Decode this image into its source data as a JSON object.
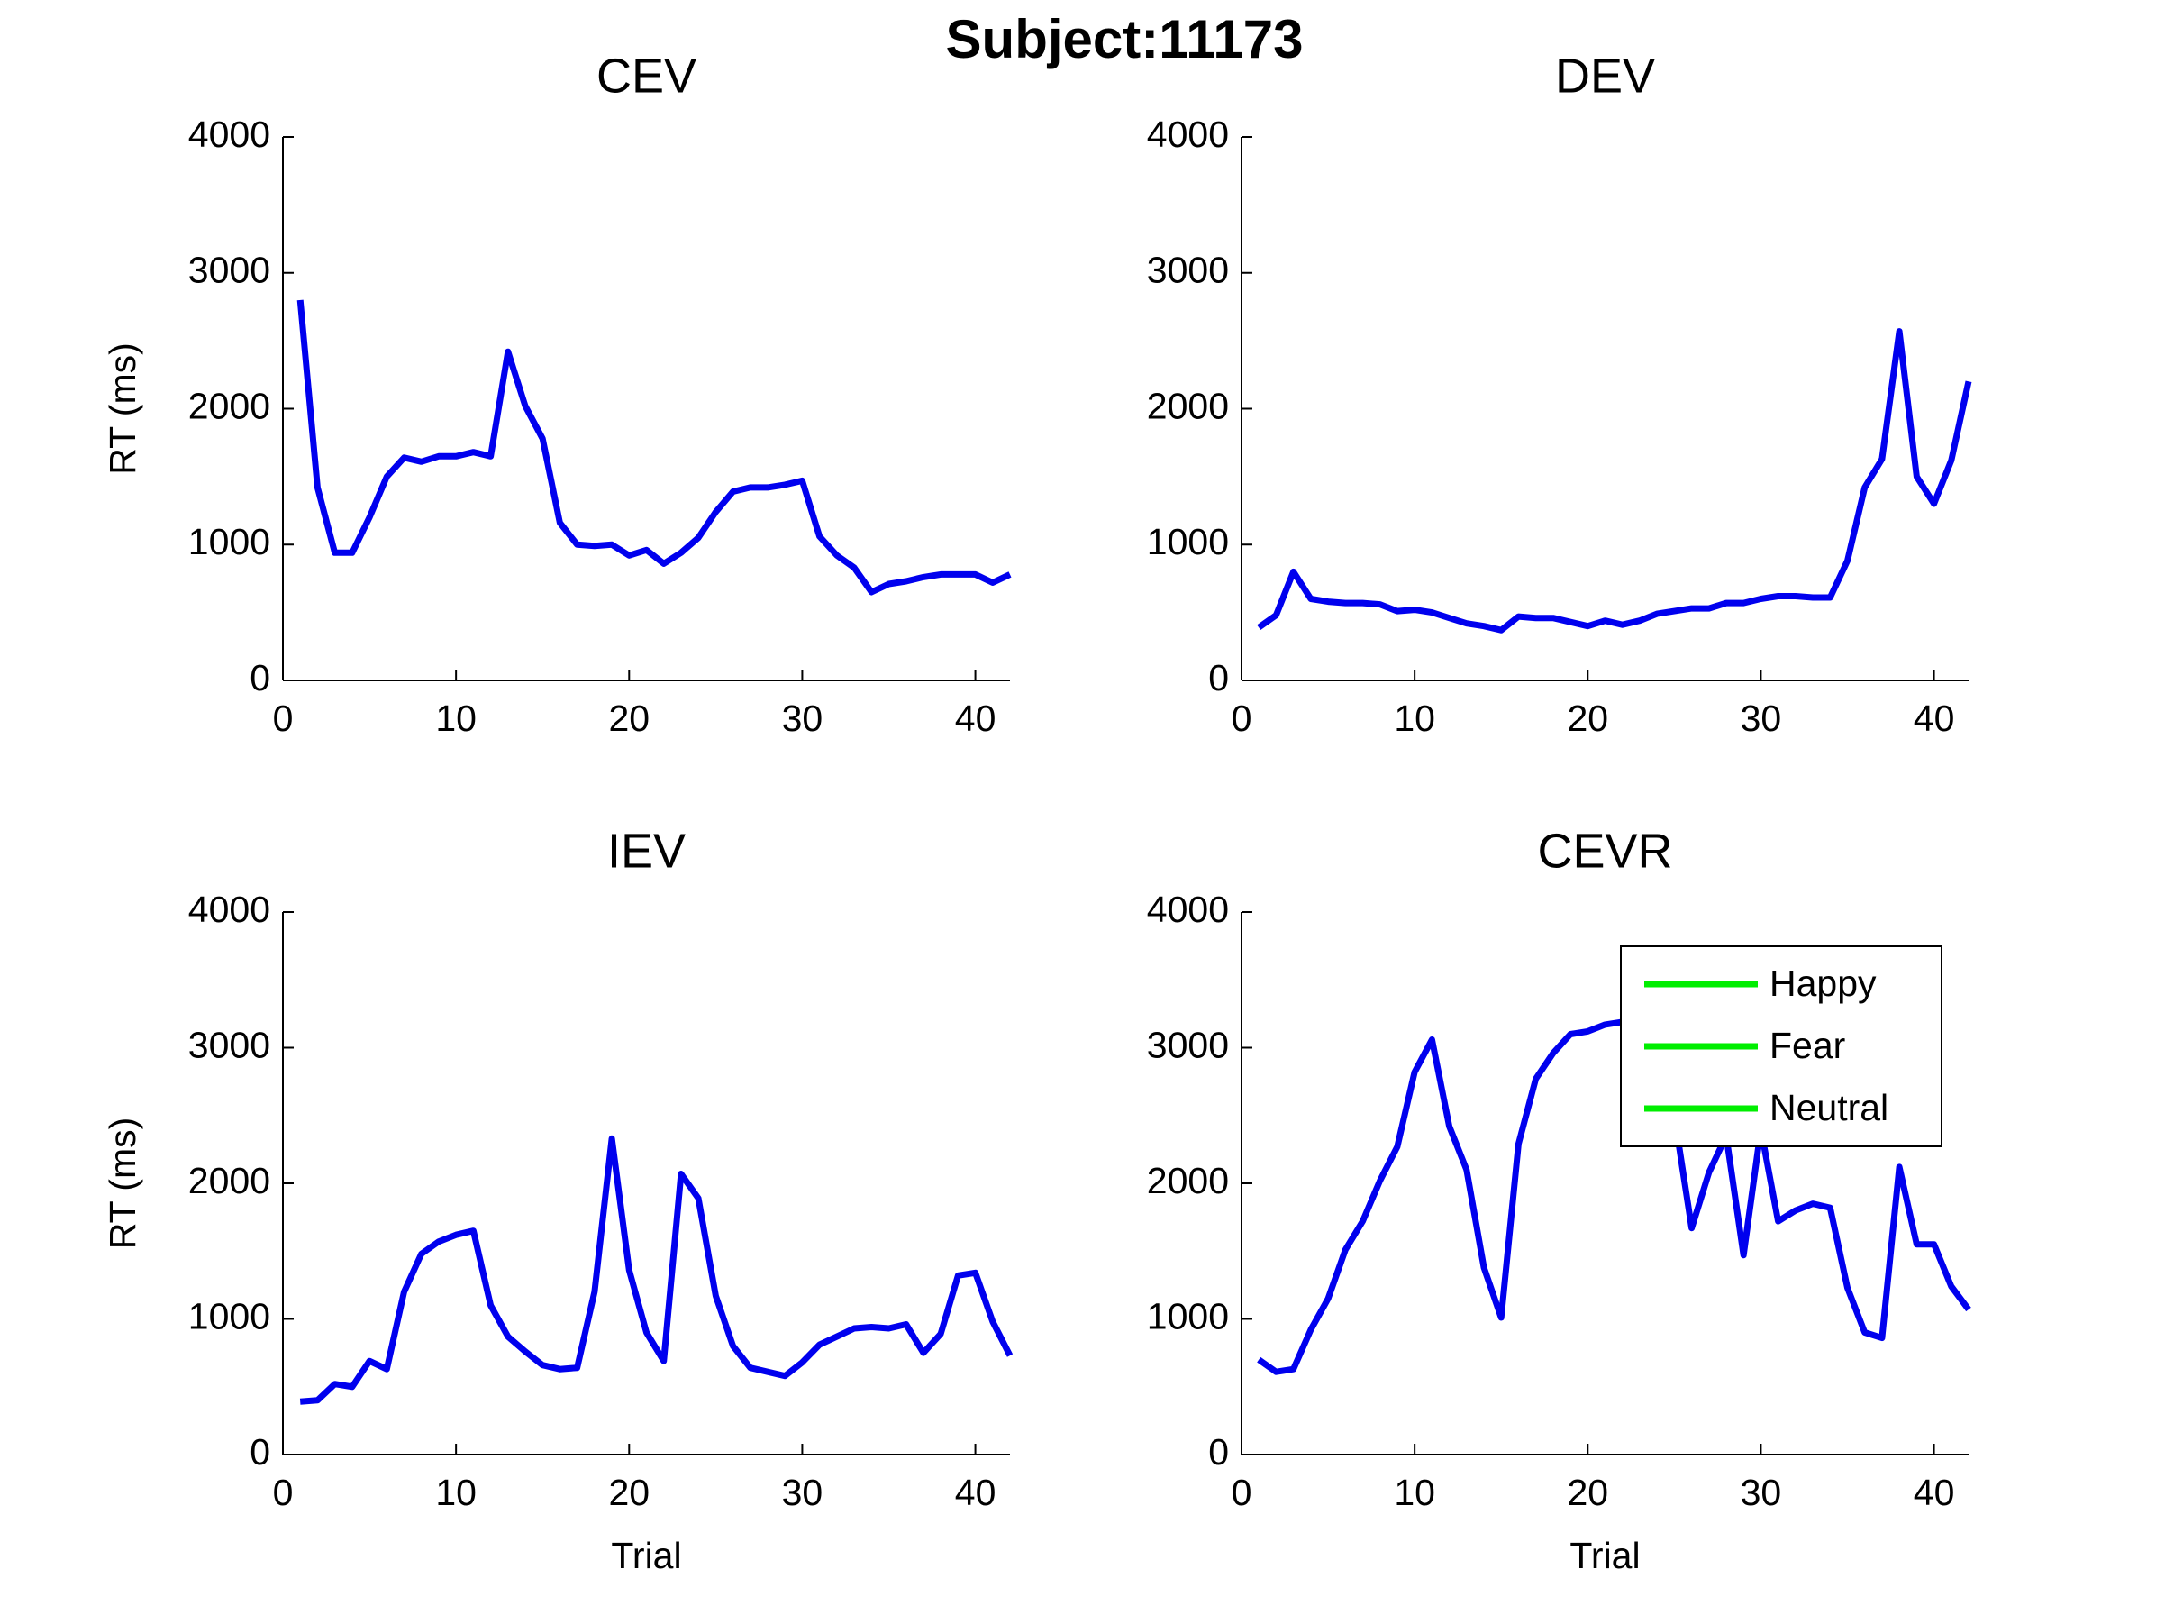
{
  "title": "Subject:11173",
  "chart_data": [
    {
      "type": "line",
      "title": "CEV",
      "ylabel": "RT (ms)",
      "x": [
        1,
        2,
        3,
        4,
        5,
        6,
        7,
        8,
        9,
        10,
        11,
        12,
        13,
        14,
        15,
        16,
        17,
        18,
        19,
        20,
        21,
        22,
        23,
        24,
        25,
        26,
        27,
        28,
        29,
        30,
        31,
        32,
        33,
        34,
        35,
        36,
        37,
        38,
        39,
        40,
        41,
        42
      ],
      "series": [
        {
          "color": "#0000ee",
          "values": [
            2800,
            1420,
            940,
            940,
            1200,
            1500,
            1640,
            1610,
            1650,
            1650,
            1680,
            1650,
            2420,
            2020,
            1780,
            1160,
            1000,
            990,
            1000,
            920,
            960,
            860,
            940,
            1050,
            1240,
            1390,
            1420,
            1420,
            1440,
            1470,
            1060,
            920,
            830,
            650,
            710,
            730,
            760,
            780,
            780,
            780,
            720,
            780
          ]
        }
      ],
      "xlim": [
        0,
        42
      ],
      "xticks": [
        0,
        10,
        20,
        30,
        40
      ],
      "ylim": [
        0,
        4000
      ],
      "yticks": [
        0,
        1000,
        2000,
        3000,
        4000
      ]
    },
    {
      "type": "line",
      "title": "DEV",
      "x": [
        1,
        2,
        3,
        4,
        5,
        6,
        7,
        8,
        9,
        10,
        11,
        12,
        13,
        14,
        15,
        16,
        17,
        18,
        19,
        20,
        21,
        22,
        23,
        24,
        25,
        26,
        27,
        28,
        29,
        30,
        31,
        32,
        33,
        34,
        35,
        36,
        37,
        38,
        39,
        40,
        41,
        42
      ],
      "series": [
        {
          "color": "#0000ee",
          "values": [
            390,
            480,
            800,
            600,
            580,
            570,
            570,
            560,
            510,
            520,
            500,
            460,
            420,
            400,
            370,
            470,
            460,
            460,
            430,
            400,
            440,
            410,
            440,
            490,
            510,
            530,
            530,
            570,
            570,
            600,
            620,
            620,
            610,
            610,
            880,
            1420,
            1630,
            2570,
            1500,
            1300,
            1620,
            2200
          ]
        }
      ],
      "xlim": [
        0,
        42
      ],
      "xticks": [
        0,
        10,
        20,
        30,
        40
      ],
      "ylim": [
        0,
        4000
      ],
      "yticks": [
        0,
        1000,
        2000,
        3000,
        4000
      ]
    },
    {
      "type": "line",
      "title": "IEV",
      "ylabel": "RT (ms)",
      "xlabel": "Trial",
      "x": [
        1,
        2,
        3,
        4,
        5,
        6,
        7,
        8,
        9,
        10,
        11,
        12,
        13,
        14,
        15,
        16,
        17,
        18,
        19,
        20,
        21,
        22,
        23,
        24,
        25,
        26,
        27,
        28,
        29,
        30,
        31,
        32,
        33,
        34,
        35,
        36,
        37,
        38,
        39,
        40,
        41,
        42
      ],
      "series": [
        {
          "color": "#0000ee",
          "values": [
            390,
            400,
            520,
            500,
            690,
            630,
            1200,
            1480,
            1570,
            1620,
            1650,
            1100,
            870,
            760,
            660,
            630,
            640,
            1200,
            2330,
            1360,
            900,
            690,
            2070,
            1890,
            1170,
            800,
            640,
            610,
            580,
            680,
            810,
            870,
            930,
            940,
            930,
            960,
            750,
            890,
            1320,
            1340,
            980,
            730
          ]
        }
      ],
      "xlim": [
        0,
        42
      ],
      "xticks": [
        0,
        10,
        20,
        30,
        40
      ],
      "ylim": [
        0,
        4000
      ],
      "yticks": [
        0,
        1000,
        2000,
        3000,
        4000
      ]
    },
    {
      "type": "line",
      "title": "CEVR",
      "xlabel": "Trial",
      "x": [
        1,
        2,
        3,
        4,
        5,
        6,
        7,
        8,
        9,
        10,
        11,
        12,
        13,
        14,
        15,
        16,
        17,
        18,
        19,
        20,
        21,
        22,
        23,
        24,
        25,
        26,
        27,
        28,
        29,
        30,
        31,
        32,
        33,
        34,
        35,
        36,
        37,
        38,
        39,
        40,
        41,
        42
      ],
      "series": [
        {
          "color": "#0000ee",
          "values": [
            700,
            610,
            630,
            920,
            1150,
            1510,
            1720,
            2020,
            2270,
            2820,
            3060,
            2420,
            2100,
            1380,
            1010,
            2290,
            2770,
            2960,
            3100,
            3120,
            3170,
            3190,
            3200,
            3100,
            2500,
            1670,
            2080,
            2350,
            1470,
            2400,
            1720,
            1800,
            1850,
            1820,
            1230,
            900,
            860,
            2120,
            1550,
            1550,
            1240,
            1070
          ]
        }
      ],
      "xlim": [
        0,
        42
      ],
      "xticks": [
        0,
        10,
        20,
        30,
        40
      ],
      "ylim": [
        0,
        4000
      ],
      "yticks": [
        0,
        1000,
        2000,
        3000,
        4000
      ],
      "legend": {
        "entries": [
          "Happy",
          "Fear",
          "Neutral"
        ],
        "color": "#00ee00",
        "loc": "upper right"
      }
    }
  ]
}
